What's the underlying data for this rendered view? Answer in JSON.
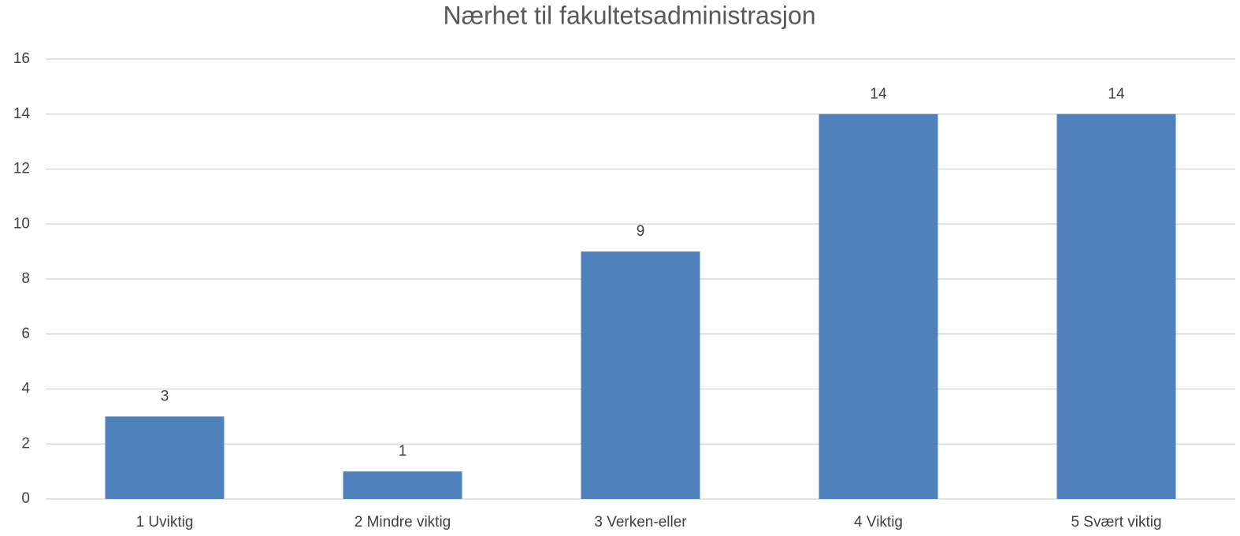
{
  "chart_data": {
    "type": "bar",
    "title": "Nærhet til fakultetsadministrasjon",
    "categories": [
      "1 Uviktig",
      "2 Mindre viktig",
      "3 Verken-eller",
      "4 Viktig",
      "5 Svært viktig"
    ],
    "values": [
      3,
      1,
      9,
      14,
      14
    ],
    "color": "#4f81bd",
    "ylim": [
      0,
      16
    ],
    "yticks": [
      0,
      2,
      4,
      6,
      8,
      10,
      12,
      14,
      16
    ],
    "grid": true,
    "data_labels": true
  }
}
